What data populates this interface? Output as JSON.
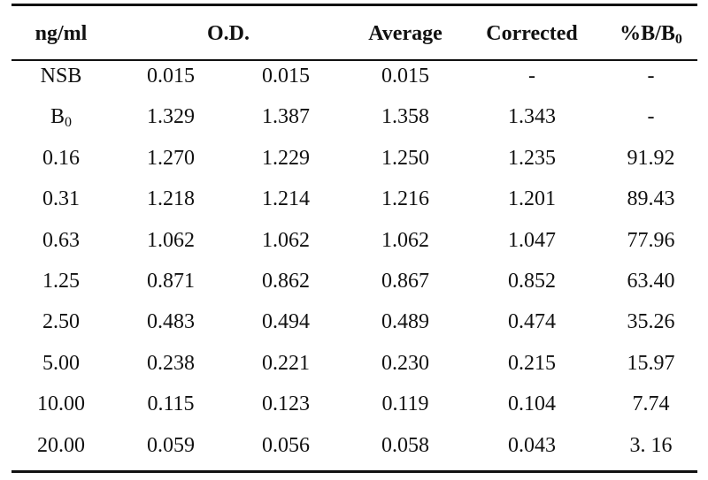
{
  "headers": {
    "conc": "ng/ml",
    "od": "O.D.",
    "average": "Average",
    "corrected": "Corrected",
    "pct_main": "%B/B",
    "pct_sub": "0"
  },
  "rows": [
    {
      "label": "NSB",
      "label_sub": "",
      "od1": "0.015",
      "od2": "0.015",
      "avg": "0.015",
      "corr": "-",
      "pct": "-"
    },
    {
      "label": "B",
      "label_sub": "0",
      "od1": "1.329",
      "od2": "1.387",
      "avg": "1.358",
      "corr": "1.343",
      "pct": "-"
    },
    {
      "label": "0.16",
      "label_sub": "",
      "od1": "1.270",
      "od2": "1.229",
      "avg": "1.250",
      "corr": "1.235",
      "pct": "91.92"
    },
    {
      "label": "0.31",
      "label_sub": "",
      "od1": "1.218",
      "od2": "1.214",
      "avg": "1.216",
      "corr": "1.201",
      "pct": "89.43"
    },
    {
      "label": "0.63",
      "label_sub": "",
      "od1": "1.062",
      "od2": "1.062",
      "avg": "1.062",
      "corr": "1.047",
      "pct": "77.96"
    },
    {
      "label": "1.25",
      "label_sub": "",
      "od1": "0.871",
      "od2": "0.862",
      "avg": "0.867",
      "corr": "0.852",
      "pct": "63.40"
    },
    {
      "label": "2.50",
      "label_sub": "",
      "od1": "0.483",
      "od2": "0.494",
      "avg": "0.489",
      "corr": "0.474",
      "pct": "35.26"
    },
    {
      "label": "5.00",
      "label_sub": "",
      "od1": "0.238",
      "od2": "0.221",
      "avg": "0.230",
      "corr": "0.215",
      "pct": "15.97"
    },
    {
      "label": "10.00",
      "label_sub": "",
      "od1": "0.115",
      "od2": "0.123",
      "avg": "0.119",
      "corr": "0.104",
      "pct": "7.74"
    },
    {
      "label": "20.00",
      "label_sub": "",
      "od1": "0.059",
      "od2": "0.056",
      "avg": "0.058",
      "corr": "0.043",
      "pct": "3. 16"
    }
  ]
}
